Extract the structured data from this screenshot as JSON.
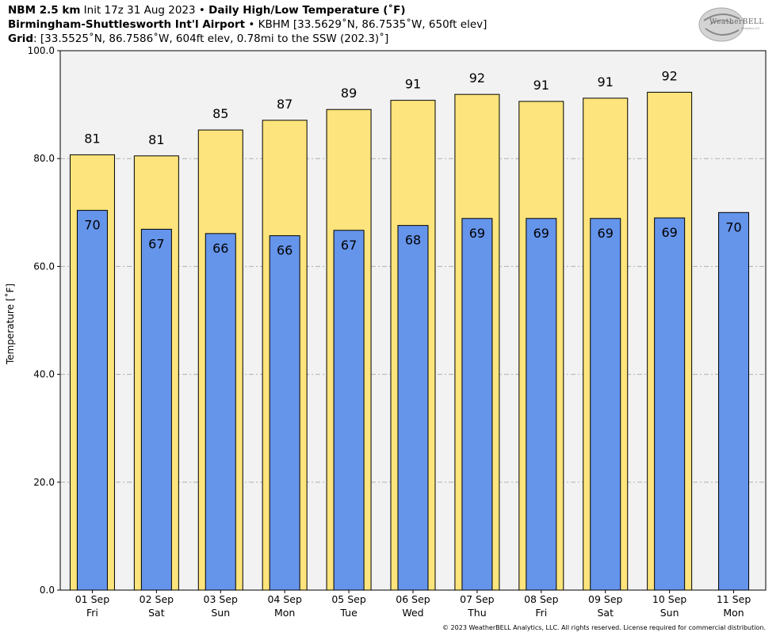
{
  "header": {
    "line1_bold_a": "NBM 2.5 km",
    "line1_mid": " Init 17z 31 Aug 2023 • ",
    "line1_bold_b": "Daily High/Low Temperature (˚F)",
    "line2_bold": "Birmingham-Shuttlesworth Int'l Airport",
    "line2_rest": " • KBHM [33.5629˚N, 86.7535˚W, 650ft elev]",
    "line3_bold": "Grid",
    "line3_rest": ": [33.5525˚N, 86.7586˚W, 604ft elev, 0.78mi to the SSW (202.3)˚]"
  },
  "logo": {
    "text": "WeatherBELL",
    "sub": "Analytics LLC"
  },
  "copyright": "© 2023 WeatherBELL Analytics, LLC. All rights reserved. License required for commercial distribution.",
  "chart_data": {
    "type": "bar",
    "ylabel": "Temperature [˚F]",
    "xlabel": "",
    "ylim": [
      0,
      100
    ],
    "yticks": [
      "0.0",
      "20.0",
      "40.0",
      "60.0",
      "80.0",
      "100.0"
    ],
    "ytick_values": [
      0,
      20,
      40,
      60,
      80,
      100
    ],
    "grid": true,
    "categories": [
      "01 Sep",
      "02 Sep",
      "03 Sep",
      "04 Sep",
      "05 Sep",
      "06 Sep",
      "07 Sep",
      "08 Sep",
      "09 Sep",
      "10 Sep",
      "11 Sep"
    ],
    "weekdays": [
      "Fri",
      "Sat",
      "Sun",
      "Mon",
      "Tue",
      "Wed",
      "Thu",
      "Fri",
      "Sat",
      "Sun",
      "Mon"
    ],
    "series": [
      {
        "values": [
          80.7,
          80.5,
          85.3,
          87.1,
          89.1,
          90.8,
          91.9,
          90.6,
          91.2,
          92.3,
          null
        ],
        "labels": [
          "81",
          "81",
          "85",
          "87",
          "89",
          "91",
          "92",
          "91",
          "91",
          "92",
          ""
        ],
        "color": "#fde47c"
      },
      {
        "values": [
          70.4,
          66.9,
          66.1,
          65.7,
          66.7,
          67.6,
          68.9,
          68.9,
          68.9,
          69.0,
          70.0
        ],
        "labels": [
          "70",
          "67",
          "66",
          "66",
          "67",
          "68",
          "69",
          "69",
          "69",
          "69",
          "70"
        ],
        "color": "#6594eb"
      }
    ],
    "plot_background": "#f2f2f2"
  }
}
